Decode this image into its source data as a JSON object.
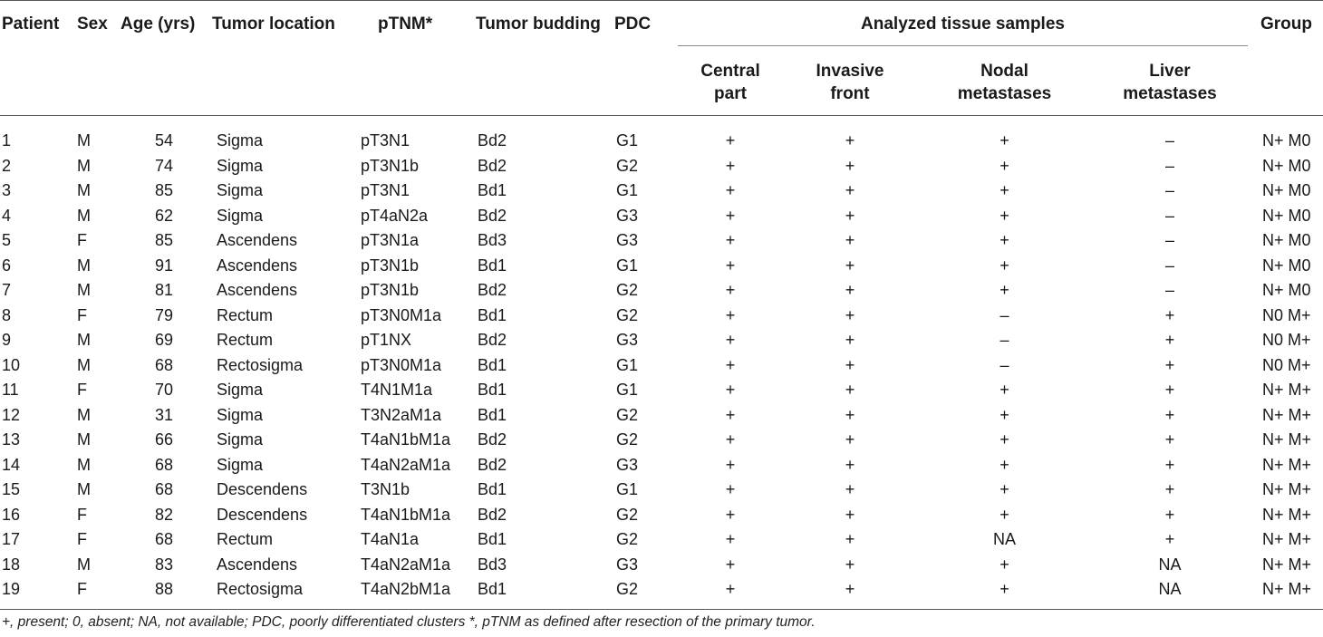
{
  "table": {
    "headers": {
      "patient": "Patient",
      "sex": "Sex",
      "age": "Age (yrs)",
      "location": "Tumor location",
      "ptnm": "pTNM*",
      "budding": "Tumor budding",
      "pdc": "PDC",
      "analyzed": "Analyzed tissue samples",
      "central_1": "Central",
      "central_2": "part",
      "invasive_1": "Invasive",
      "invasive_2": "front",
      "nodal_1": "Nodal",
      "nodal_2": "metastases",
      "liver_1": "Liver",
      "liver_2": "metastases",
      "group": "Group"
    },
    "rows": [
      [
        "1",
        "M",
        "54",
        "Sigma",
        "pT3N1",
        "Bd2",
        "G1",
        "+",
        "+",
        "+",
        "–",
        "N+ M0"
      ],
      [
        "2",
        "M",
        "74",
        "Sigma",
        "pT3N1b",
        "Bd2",
        "G2",
        "+",
        "+",
        "+",
        "–",
        "N+ M0"
      ],
      [
        "3",
        "M",
        "85",
        "Sigma",
        "pT3N1",
        "Bd1",
        "G1",
        "+",
        "+",
        "+",
        "–",
        "N+ M0"
      ],
      [
        "4",
        "M",
        "62",
        "Sigma",
        "pT4aN2a",
        "Bd2",
        "G3",
        "+",
        "+",
        "+",
        "–",
        "N+ M0"
      ],
      [
        "5",
        "F",
        "85",
        "Ascendens",
        "pT3N1a",
        "Bd3",
        "G3",
        "+",
        "+",
        "+",
        "–",
        "N+ M0"
      ],
      [
        "6",
        "M",
        "91",
        "Ascendens",
        "pT3N1b",
        "Bd1",
        "G1",
        "+",
        "+",
        "+",
        "–",
        "N+ M0"
      ],
      [
        "7",
        "M",
        "81",
        "Ascendens",
        "pT3N1b",
        "Bd2",
        "G2",
        "+",
        "+",
        "+",
        "–",
        "N+ M0"
      ],
      [
        "8",
        "F",
        "79",
        "Rectum",
        "pT3N0M1a",
        "Bd1",
        "G2",
        "+",
        "+",
        "–",
        "+",
        "N0 M+"
      ],
      [
        "9",
        "M",
        "69",
        "Rectum",
        "pT1NX",
        "Bd2",
        "G3",
        "+",
        "+",
        "–",
        "+",
        "N0 M+"
      ],
      [
        "10",
        "M",
        "68",
        "Rectosigma",
        "pT3N0M1a",
        "Bd1",
        "G1",
        "+",
        "+",
        "–",
        "+",
        "N0 M+"
      ],
      [
        "11",
        "F",
        "70",
        "Sigma",
        "T4N1M1a",
        "Bd1",
        "G1",
        "+",
        "+",
        "+",
        "+",
        "N+ M+"
      ],
      [
        "12",
        "M",
        "31",
        "Sigma",
        "T3N2aM1a",
        "Bd1",
        "G2",
        "+",
        "+",
        "+",
        "+",
        "N+ M+"
      ],
      [
        "13",
        "M",
        "66",
        "Sigma",
        "T4aN1bM1a",
        "Bd2",
        "G2",
        "+",
        "+",
        "+",
        "+",
        "N+ M+"
      ],
      [
        "14",
        "M",
        "68",
        "Sigma",
        "T4aN2aM1a",
        "Bd2",
        "G3",
        "+",
        "+",
        "+",
        "+",
        "N+ M+"
      ],
      [
        "15",
        "M",
        "68",
        "Descendens",
        "T3N1b",
        "Bd1",
        "G1",
        "+",
        "+",
        "+",
        "+",
        "N+ M+"
      ],
      [
        "16",
        "F",
        "82",
        "Descendens",
        "T4aN1bM1a",
        "Bd2",
        "G2",
        "+",
        "+",
        "+",
        "+",
        "N+ M+"
      ],
      [
        "17",
        "F",
        "68",
        "Rectum",
        "T4aN1a",
        "Bd1",
        "G2",
        "+",
        "+",
        "NA",
        "+",
        "N+ M+"
      ],
      [
        "18",
        "M",
        "83",
        "Ascendens",
        "T4aN2aM1a",
        "Bd3",
        "G3",
        "+",
        "+",
        "+",
        "NA",
        "N+ M+"
      ],
      [
        "19",
        "F",
        "88",
        "Rectosigma",
        "T4aN2bM1a",
        "Bd1",
        "G2",
        "+",
        "+",
        "+",
        "NA",
        "N+ M+"
      ]
    ]
  },
  "footnote": "+, present; 0, absent; NA, not available; PDC, poorly differentiated clusters *, pTNM as defined after resection of the primary tumor."
}
